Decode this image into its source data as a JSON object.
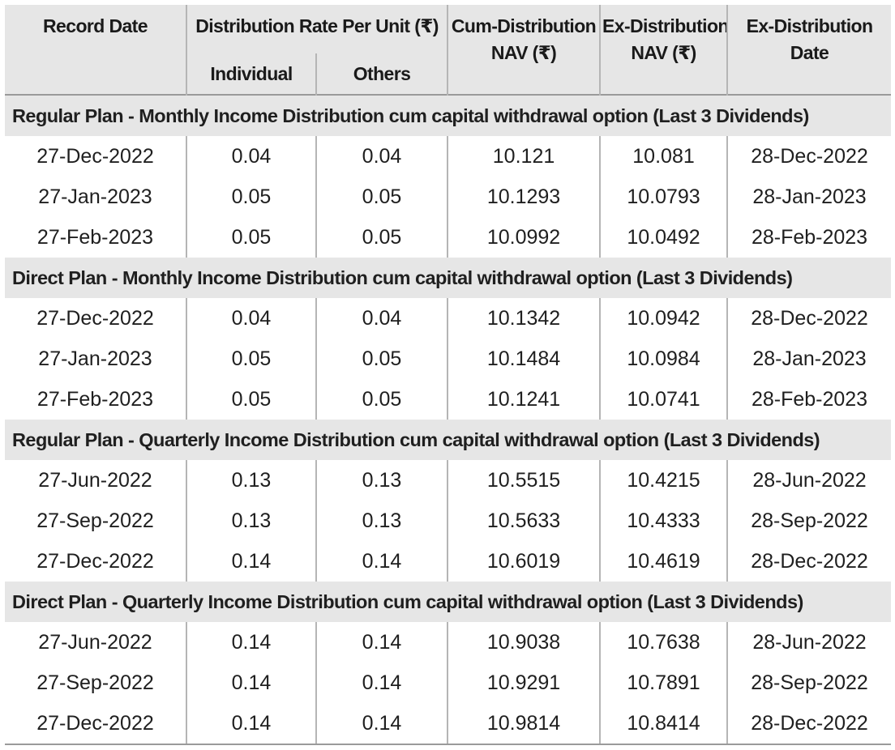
{
  "header": {
    "record_date": "Record Date",
    "distribution_rate": "Distribution Rate Per Unit  (₹)",
    "individual": "Individual",
    "others": "Others",
    "cum_nav_line1": "Cum-Distribution",
    "cum_nav_line2": "NAV (₹)",
    "ex_nav_line1": "Ex-Distribution",
    "ex_nav_line2": "NAV (₹)",
    "ex_date_line1": "Ex-Distribution",
    "ex_date_line2": "Date"
  },
  "sections": [
    {
      "title": "Regular Plan - Monthly Income Distribution cum capital withdrawal option (Last 3 Dividends)",
      "rows": [
        [
          "27-Dec-2022",
          "0.04",
          "0.04",
          "10.121",
          "10.081",
          "28-Dec-2022"
        ],
        [
          "27-Jan-2023",
          "0.05",
          "0.05",
          "10.1293",
          "10.0793",
          "28-Jan-2023"
        ],
        [
          "27-Feb-2023",
          "0.05",
          "0.05",
          "10.0992",
          "10.0492",
          "28-Feb-2023"
        ]
      ]
    },
    {
      "title": "Direct Plan - Monthly Income Distribution cum capital withdrawal option (Last 3 Dividends)",
      "rows": [
        [
          "27-Dec-2022",
          "0.04",
          "0.04",
          "10.1342",
          "10.0942",
          "28-Dec-2022"
        ],
        [
          "27-Jan-2023",
          "0.05",
          "0.05",
          "10.1484",
          "10.0984",
          "28-Jan-2023"
        ],
        [
          "27-Feb-2023",
          "0.05",
          "0.05",
          "10.1241",
          "10.0741",
          "28-Feb-2023"
        ]
      ]
    },
    {
      "title": "Regular Plan - Quarterly Income Distribution cum capital withdrawal option (Last 3 Dividends)",
      "rows": [
        [
          "27-Jun-2022",
          "0.13",
          "0.13",
          "10.5515",
          "10.4215",
          "28-Jun-2022"
        ],
        [
          "27-Sep-2022",
          "0.13",
          "0.13",
          "10.5633",
          "10.4333",
          "28-Sep-2022"
        ],
        [
          "27-Dec-2022",
          "0.14",
          "0.14",
          "10.6019",
          "10.4619",
          "28-Dec-2022"
        ]
      ]
    },
    {
      "title": "Direct Plan - Quarterly Income Distribution cum capital withdrawal option (Last 3 Dividends)",
      "rows": [
        [
          "27-Jun-2022",
          "0.14",
          "0.14",
          "10.9038",
          "10.7638",
          "28-Jun-2022"
        ],
        [
          "27-Sep-2022",
          "0.14",
          "0.14",
          "10.9291",
          "10.7891",
          "28-Sep-2022"
        ],
        [
          "27-Dec-2022",
          "0.14",
          "0.14",
          "10.9814",
          "10.8414",
          "28-Dec-2022"
        ]
      ]
    }
  ]
}
